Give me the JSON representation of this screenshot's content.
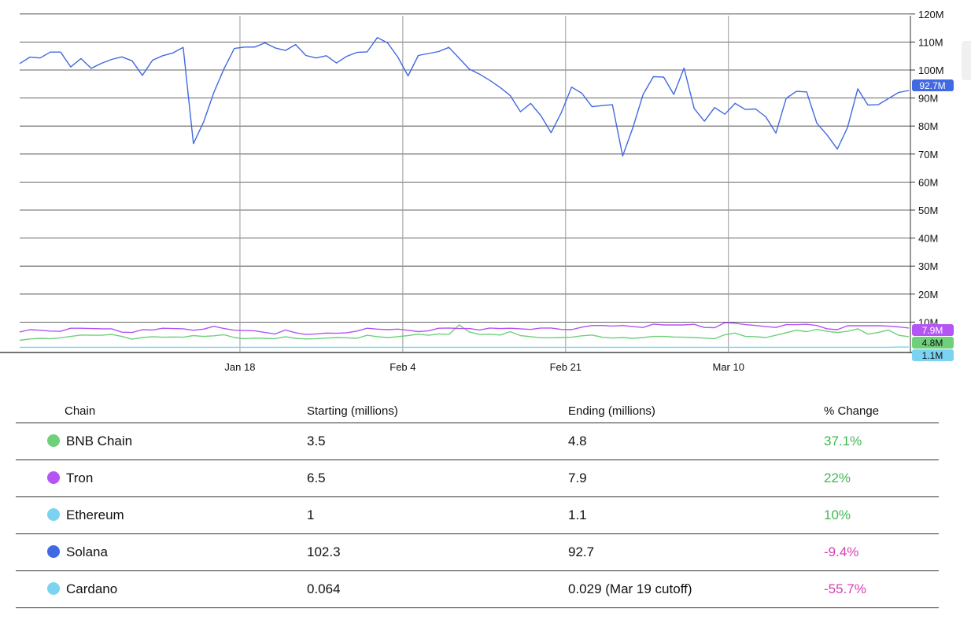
{
  "chart_data": {
    "type": "line",
    "x_ticks": [
      {
        "label": "Jan 18",
        "date": "2023-01-18"
      },
      {
        "label": "Feb 4",
        "date": "2023-02-04"
      },
      {
        "label": "Feb 21",
        "date": "2023-02-21"
      },
      {
        "label": "Mar 10",
        "date": "2023-03-10"
      }
    ],
    "x_range": [
      "2022-12-26",
      "2023-03-29"
    ],
    "y_ticks": [
      "10M",
      "20M",
      "30M",
      "40M",
      "50M",
      "60M",
      "70M",
      "80M",
      "90M",
      "100M",
      "110M",
      "120M"
    ],
    "ylim": [
      0,
      120
    ],
    "y_unit": "millions",
    "grid": "vertical lines at x ticks, horizontal lines at y ticks",
    "series": [
      {
        "name": "Solana",
        "color": "#4169e1",
        "end_label": "92.7M",
        "values": [
          102.3,
          104.6,
          104.3,
          106.4,
          106.4,
          101.1,
          104.1,
          100.6,
          102.4,
          103.8,
          104.7,
          103.3,
          98.1,
          103.5,
          105.1,
          106.1,
          108.1,
          73.7,
          81.5,
          92,
          100.5,
          107.7,
          108.2,
          108.2,
          109.7,
          107.9,
          107,
          109.1,
          105.2,
          104.3,
          105.1,
          102.5,
          104.9,
          106.3,
          106.5,
          111.6,
          109.7,
          104.6,
          97.9,
          105.2,
          105.9,
          106.6,
          108.1,
          104.2,
          100.3,
          98.5,
          96.3,
          93.8,
          90.9,
          85.1,
          88.1,
          83.7,
          77.6,
          84.8,
          93.9,
          91.7,
          86.9,
          87.3,
          87.6,
          69.3,
          79.4,
          91.3,
          97.6,
          97.5,
          91.3,
          100.7,
          86.3,
          81.7,
          86.6,
          84.2,
          88.1,
          85.9,
          86.1,
          83.3,
          77.5,
          89.9,
          92.4,
          92.2,
          81,
          76.8,
          71.8,
          79.5,
          93.3,
          87.5,
          87.6,
          89.8,
          92,
          92.7
        ]
      },
      {
        "name": "Tron",
        "color": "#b454f5",
        "end_label": "7.9M",
        "values": [
          6.5,
          7.3,
          7.1,
          6.8,
          6.7,
          7.8,
          7.8,
          7.7,
          7.6,
          7.6,
          6.4,
          6.3,
          7.3,
          7.2,
          7.8,
          7.7,
          7.6,
          7.1,
          7.5,
          8.5,
          7.7,
          7.1,
          7,
          6.9,
          6.3,
          5.8,
          7.2,
          6.2,
          5.6,
          5.8,
          6.1,
          6,
          6.2,
          6.8,
          7.8,
          7.5,
          7.3,
          7.5,
          7.1,
          6.6,
          6.9,
          7.8,
          7.9,
          7.7,
          7.7,
          7.2,
          7.9,
          7.7,
          7.8,
          7.6,
          7.4,
          7.9,
          7.9,
          7.4,
          7.3,
          8.2,
          8.8,
          8.8,
          8.6,
          8.8,
          8.4,
          8.1,
          9.3,
          9,
          9,
          9,
          9.2,
          8.1,
          8,
          9.8,
          9.6,
          9.1,
          8.8,
          8.4,
          8.1,
          9.1,
          9.1,
          9.2,
          8.8,
          7.6,
          7.3,
          8.7,
          8.7,
          8.7,
          8.7,
          8.6,
          8.3,
          7.9
        ]
      },
      {
        "name": "BNB Chain",
        "color": "#6ed07a",
        "end_label": "4.8M",
        "values": [
          3.5,
          4,
          4.2,
          4.1,
          4.4,
          4.9,
          5.4,
          5.3,
          5.3,
          5.6,
          4.9,
          3.9,
          4.5,
          4.8,
          4.6,
          4.7,
          4.6,
          5.2,
          4.9,
          5.1,
          5.5,
          4.5,
          4.1,
          4.3,
          4.2,
          4.1,
          4.8,
          4.2,
          4,
          4.1,
          4.3,
          4.5,
          4.4,
          4.2,
          5.3,
          4.8,
          4.5,
          4.8,
          5.2,
          5.7,
          5.3,
          5.8,
          5.6,
          9,
          6.5,
          5.6,
          5.7,
          5.4,
          6.6,
          5.2,
          4.8,
          4.4,
          4.4,
          4.5,
          4.6,
          5.1,
          5.4,
          4.6,
          4.3,
          4.5,
          4.2,
          4.5,
          4.9,
          4.9,
          4.7,
          4.6,
          4.5,
          4.3,
          4.1,
          5.5,
          6.1,
          4.9,
          4.8,
          4.5,
          5.3,
          6.2,
          7.1,
          6.6,
          7.4,
          6.7,
          6.3,
          6.7,
          7.6,
          5.7,
          6.3,
          7.2,
          5.3,
          4.8
        ]
      },
      {
        "name": "Ethereum",
        "color": "#7ad3f0",
        "end_label": "1.1M",
        "values": [
          1,
          1,
          1,
          1,
          1,
          1,
          1,
          1,
          1,
          1,
          1,
          1,
          1,
          1,
          1,
          1,
          1,
          1,
          1,
          1,
          1,
          1,
          1,
          1,
          1,
          1,
          1,
          1,
          1,
          1,
          1,
          1,
          1,
          1,
          1,
          1,
          1,
          1,
          1,
          1,
          1,
          1,
          1,
          1,
          1,
          1,
          1,
          1,
          1,
          1,
          1,
          1,
          1,
          1,
          1,
          1,
          1,
          1,
          1,
          1,
          1,
          1,
          1,
          1,
          1,
          1,
          1,
          1,
          1,
          1,
          1,
          1,
          1,
          1,
          1,
          1,
          1,
          1,
          1,
          1,
          1,
          1,
          1,
          1,
          1,
          1,
          1.1,
          1.1
        ]
      }
    ]
  },
  "table": {
    "headers": [
      "Chain",
      "Starting (millions)",
      "Ending (millions)",
      "% Change"
    ],
    "rows": [
      {
        "chain": "BNB Chain",
        "color": "#6ed07a",
        "start": "3.5",
        "end": "4.8",
        "change": "37.1%",
        "trend": "pos"
      },
      {
        "chain": "Tron",
        "color": "#b454f5",
        "start": "6.5",
        "end": "7.9",
        "change": "22%",
        "trend": "pos"
      },
      {
        "chain": "Ethereum",
        "color": "#7ad3f0",
        "start": "1",
        "end": "1.1",
        "change": "10%",
        "trend": "pos"
      },
      {
        "chain": "Solana",
        "color": "#4169e1",
        "start": "102.3",
        "end": "92.7",
        "change": "-9.4%",
        "trend": "neg"
      },
      {
        "chain": "Cardano",
        "color": "#7ad3f0",
        "start": "0.064",
        "end": "0.029 (Mar 19 cutoff)",
        "change": "-55.7%",
        "trend": "neg"
      }
    ]
  }
}
